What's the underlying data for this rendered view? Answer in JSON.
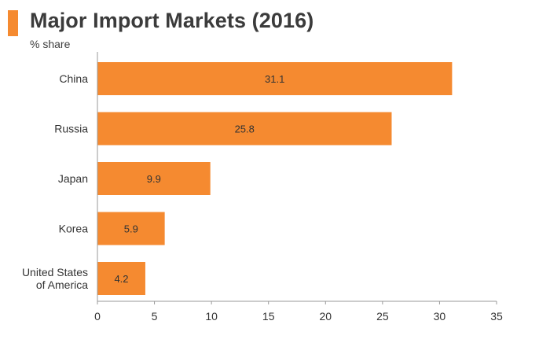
{
  "header": {
    "title": "Major Import Markets (2016)",
    "subtitle": "% share"
  },
  "chart_data": {
    "type": "bar",
    "orientation": "horizontal",
    "title": "Major Import Markets (2016)",
    "subtitle": "% share",
    "categories": [
      "China",
      "Russia",
      "Japan",
      "Korea",
      "United States of America"
    ],
    "category_label_lines": [
      [
        "China"
      ],
      [
        "Russia"
      ],
      [
        "Japan"
      ],
      [
        "Korea"
      ],
      [
        "United States",
        "of America"
      ]
    ],
    "values": [
      31.1,
      25.8,
      9.9,
      5.9,
      4.2
    ],
    "value_labels": [
      "31.1",
      "25.8",
      "9.9",
      "5.9",
      "4.2"
    ],
    "xlim": [
      0,
      35
    ],
    "xticks": [
      0,
      5,
      10,
      15,
      20,
      25,
      30,
      35
    ],
    "xlabel": "",
    "ylabel": "",
    "grid": false,
    "legend": "none",
    "bar_color": "#F58A30",
    "accent_color": "#F58A30"
  }
}
